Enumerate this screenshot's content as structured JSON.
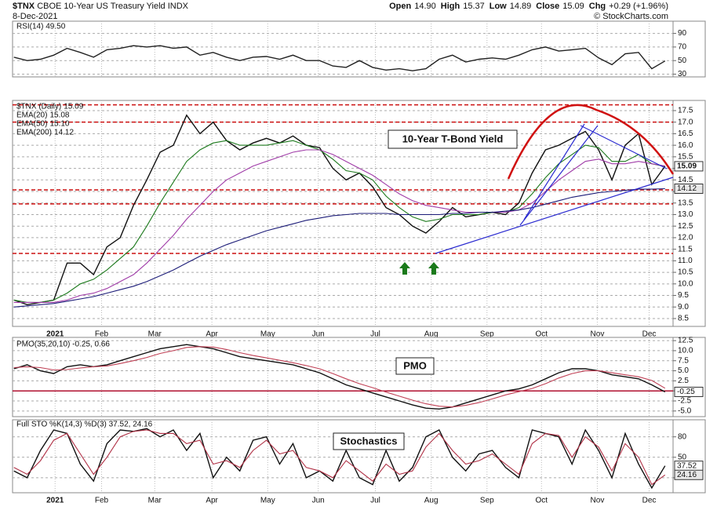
{
  "header": {
    "symbol": "$TNX",
    "name": "CBOE 10-Year US Treasury Yield INDX",
    "date": "8-Dec-2021",
    "copyright": "© StockCharts.com",
    "quote": [
      {
        "label": "Open",
        "value": "14.90"
      },
      {
        "label": "High",
        "value": "15.37"
      },
      {
        "label": "Low",
        "value": "14.89"
      },
      {
        "label": "Close",
        "value": "15.09"
      },
      {
        "label": "Chg",
        "value": "+0.29 (+1.96%)"
      }
    ]
  },
  "chart_data": [
    {
      "type": "line",
      "legend": "RSI(14) 49.50",
      "ylim": [
        26,
        108
      ],
      "yticks": [
        30,
        50,
        70,
        90
      ],
      "grid": true,
      "series": [
        {
          "name": "RSI(14)",
          "color": "#222222",
          "last_label": "49.50",
          "values": [
            55,
            50,
            52,
            58,
            68,
            62,
            55,
            66,
            68,
            72,
            70,
            72,
            68,
            70,
            58,
            62,
            55,
            50,
            55,
            56,
            52,
            58,
            50,
            50,
            42,
            40,
            50,
            40,
            36,
            38,
            35,
            38,
            52,
            58,
            48,
            52,
            54,
            52,
            58,
            66,
            70,
            64,
            66,
            68,
            54,
            44,
            60,
            62,
            38,
            49.5
          ]
        }
      ]
    },
    {
      "type": "line",
      "annotation": "10-Year T-Bond Yield",
      "ylim": [
        8.16,
        17.94
      ],
      "xlim": [
        -0.1,
        49.6
      ],
      "yticks": [
        8.5,
        {
          "value": 9,
          "label": "9.0"
        },
        9.5,
        {
          "value": 10,
          "label": "10.0"
        },
        10.5,
        {
          "value": 11,
          "label": "11.0"
        },
        11.5,
        {
          "value": 12,
          "label": "12.0"
        },
        12.5,
        {
          "value": 13,
          "label": "13.0"
        },
        13.5,
        {
          "value": 14,
          "label": "14.0"
        },
        14.5,
        {
          "value": 15,
          "label": "15.0"
        },
        15.5,
        {
          "value": 16,
          "label": "16.0"
        },
        16.5,
        {
          "value": 17,
          "label": "17.0"
        },
        17.5
      ],
      "xticks": [
        {
          "value": 3.1,
          "label": "2021"
        },
        {
          "value": 6.6,
          "label": "Feb"
        },
        {
          "value": 10.6,
          "label": "Mar"
        },
        {
          "value": 14.9,
          "label": "Apr"
        },
        {
          "value": 19.1,
          "label": "May"
        },
        {
          "value": 22.9,
          "label": "Jun"
        },
        {
          "value": 27.2,
          "label": "Jul"
        },
        {
          "value": 31.4,
          "label": "Aug"
        },
        {
          "value": 35.6,
          "label": "Sep"
        },
        {
          "value": 39.7,
          "label": "Oct"
        },
        {
          "value": 43.9,
          "label": "Nov"
        },
        {
          "value": 47.8,
          "label": "Dec"
        }
      ],
      "hlines": [
        17.75,
        17.0,
        14.07,
        13.46,
        11.32
      ],
      "hline_color": "#cc1111",
      "grid": true,
      "series": [
        {
          "name": "$TNX (Daily)",
          "color": "#111111",
          "last_label": "15.09",
          "box": true,
          "values": [
            9.3,
            9.1,
            9.2,
            9.3,
            10.9,
            10.9,
            10.4,
            11.6,
            12.0,
            13.4,
            14.5,
            15.7,
            16.0,
            17.3,
            16.5,
            17.0,
            16.2,
            15.8,
            16.1,
            16.3,
            16.1,
            16.4,
            16.0,
            15.9,
            15.0,
            14.5,
            14.8,
            14.2,
            13.3,
            13.0,
            12.5,
            12.2,
            12.7,
            13.3,
            12.9,
            13.0,
            13.1,
            13.0,
            13.5,
            14.8,
            15.8,
            16.0,
            16.3,
            16.6,
            15.8,
            14.5,
            16.0,
            16.5,
            14.3,
            15.09
          ]
        },
        {
          "name": "EMA(20)",
          "color": "#1d7a1d",
          "last_label": "15.08",
          "values": [
            9.3,
            9.2,
            9.2,
            9.3,
            9.6,
            10.0,
            10.2,
            10.6,
            11.1,
            11.6,
            12.5,
            13.5,
            14.4,
            15.3,
            15.8,
            16.1,
            16.2,
            16.0,
            16.0,
            16.0,
            16.1,
            16.2,
            16.0,
            15.8,
            15.4,
            14.9,
            14.8,
            14.5,
            13.8,
            13.3,
            12.9,
            12.7,
            12.8,
            13.0,
            13.0,
            13.0,
            13.1,
            13.1,
            13.3,
            13.9,
            14.6,
            15.2,
            15.6,
            16.0,
            15.9,
            15.3,
            15.3,
            15.6,
            15.2,
            15.08
          ]
        },
        {
          "name": "EMA(50)",
          "color": "#a03ca8",
          "last_label": "15.10",
          "values": [
            9.2,
            9.2,
            9.2,
            9.2,
            9.3,
            9.5,
            9.6,
            9.8,
            10.1,
            10.4,
            10.9,
            11.5,
            12.1,
            12.8,
            13.4,
            14.0,
            14.5,
            14.8,
            15.1,
            15.3,
            15.5,
            15.7,
            15.8,
            15.8,
            15.6,
            15.3,
            15.0,
            14.7,
            14.3,
            13.9,
            13.6,
            13.4,
            13.3,
            13.2,
            13.1,
            13.1,
            13.1,
            13.1,
            13.2,
            13.5,
            14.0,
            14.5,
            14.9,
            15.3,
            15.4,
            15.2,
            15.2,
            15.3,
            15.2,
            15.1
          ]
        },
        {
          "name": "EMA(200)",
          "color": "#1c1c78",
          "last_label": "14.12",
          "box": true,
          "values": [
            9.0,
            9.05,
            9.1,
            9.15,
            9.25,
            9.35,
            9.45,
            9.6,
            9.75,
            9.9,
            10.1,
            10.35,
            10.6,
            10.9,
            11.2,
            11.45,
            11.7,
            11.9,
            12.1,
            12.3,
            12.45,
            12.6,
            12.75,
            12.85,
            12.95,
            13.0,
            13.05,
            13.05,
            13.05,
            13.0,
            13.0,
            13.0,
            13.0,
            13.05,
            13.05,
            13.1,
            13.1,
            13.15,
            13.2,
            13.3,
            13.45,
            13.6,
            13.75,
            13.85,
            13.95,
            14.0,
            14.05,
            14.1,
            14.1,
            14.12
          ]
        }
      ]
    },
    {
      "type": "line",
      "legend": "PMO(35,20,10) -0.25, 0.66",
      "annotation": "PMO",
      "ylim": [
        -6.4,
        13.3
      ],
      "yticks": [
        {
          "value": -5,
          "label": "-5.0"
        },
        -2.5,
        {
          "value": 0,
          "label": "0.0"
        },
        2.5,
        {
          "value": 5,
          "label": "5.0"
        },
        7.5,
        {
          "value": 10,
          "label": "10.0"
        },
        12.5
      ],
      "hlines": [
        0
      ],
      "hline_color": "#b01030",
      "grid": true,
      "series": [
        {
          "name": "PMO(35,20,10)",
          "color": "#111111",
          "last_label": "-0.25",
          "box": true,
          "values": [
            5.5,
            6.5,
            5,
            4.3,
            6,
            6.5,
            6,
            6.5,
            7.5,
            8.5,
            9.5,
            10.5,
            11,
            11.5,
            11,
            10.5,
            9.5,
            8.5,
            8,
            7.5,
            7,
            6.5,
            5.5,
            4.5,
            3,
            1.5,
            0.5,
            -0.5,
            -1.5,
            -2.5,
            -3.5,
            -4.3,
            -4.5,
            -4,
            -3,
            -2,
            -1,
            0,
            0.5,
            1.5,
            3,
            4.5,
            5.5,
            5.5,
            5,
            4,
            3.5,
            3,
            1.5,
            -0.25
          ]
        },
        {
          "name": "Signal",
          "color": "#c04055",
          "values": [
            5.8,
            6,
            5.8,
            5.2,
            5.3,
            5.7,
            6,
            6.2,
            6.8,
            7.5,
            8.3,
            9.3,
            10,
            10.8,
            11,
            10.9,
            10.3,
            9.5,
            8.8,
            8.2,
            7.6,
            7,
            6.3,
            5.5,
            4.3,
            3,
            1.8,
            0.8,
            -0.3,
            -1.3,
            -2.3,
            -3.2,
            -3.8,
            -4,
            -3.6,
            -2.9,
            -2,
            -1,
            -0.2,
            0.6,
            1.8,
            3.2,
            4.3,
            5,
            5,
            4.5,
            4,
            3.5,
            2.6,
            0.66
          ]
        }
      ]
    },
    {
      "type": "line",
      "legend": "Full STO %K(14,3) %D(3) 37.52, 24.16",
      "annotation": "Stochastics",
      "ylim": [
        -2,
        105
      ],
      "yticks": [
        20,
        50,
        80
      ],
      "grid": true,
      "xticks": [
        {
          "value": 3.1,
          "label": "2021"
        },
        {
          "value": 6.6,
          "label": "Feb"
        },
        {
          "value": 10.6,
          "label": "Mar"
        },
        {
          "value": 14.9,
          "label": "Apr"
        },
        {
          "value": 19.1,
          "label": "May"
        },
        {
          "value": 22.9,
          "label": "Jun"
        },
        {
          "value": 27.2,
          "label": "Jul"
        },
        {
          "value": 31.4,
          "label": "Aug"
        },
        {
          "value": 35.6,
          "label": "Sep"
        },
        {
          "value": 39.7,
          "label": "Oct"
        },
        {
          "value": 43.9,
          "label": "Nov"
        },
        {
          "value": 47.8,
          "label": "Dec"
        }
      ],
      "series": [
        {
          "name": "%K(14,3)",
          "color": "#111111",
          "last_label": "37.52",
          "box": true,
          "values": [
            30,
            20,
            60,
            90,
            85,
            40,
            15,
            70,
            90,
            88,
            92,
            80,
            90,
            60,
            85,
            20,
            50,
            30,
            75,
            80,
            40,
            70,
            20,
            30,
            15,
            60,
            20,
            10,
            60,
            15,
            35,
            80,
            90,
            50,
            30,
            55,
            60,
            35,
            20,
            90,
            85,
            80,
            40,
            90,
            60,
            20,
            85,
            40,
            5,
            37.52
          ]
        },
        {
          "name": "%D(3)",
          "color": "#b03045",
          "last_label": "24.16",
          "box": true,
          "values": [
            35,
            25,
            45,
            75,
            85,
            55,
            25,
            50,
            80,
            88,
            90,
            85,
            85,
            70,
            75,
            40,
            45,
            35,
            60,
            75,
            55,
            60,
            35,
            30,
            20,
            45,
            30,
            15,
            40,
            25,
            30,
            65,
            85,
            60,
            40,
            45,
            55,
            40,
            25,
            70,
            85,
            82,
            50,
            80,
            65,
            30,
            70,
            50,
            10,
            24.16
          ]
        }
      ]
    }
  ]
}
